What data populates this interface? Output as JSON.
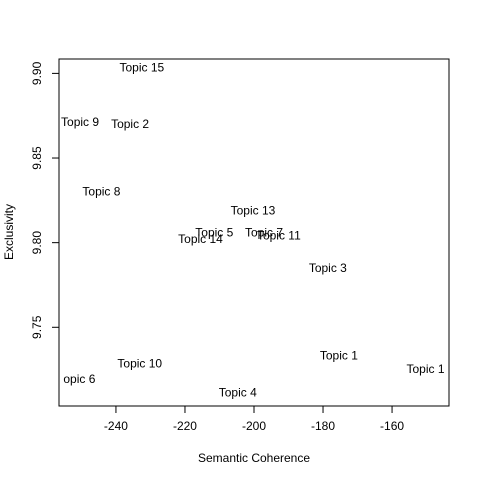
{
  "chart_data": {
    "type": "scatter",
    "title": "",
    "xlabel": "Semantic Coherence",
    "ylabel": "Exclusivity",
    "xlim": [
      -256.5,
      -143.5
    ],
    "ylim": [
      9.7035,
      9.9085
    ],
    "x_ticks": [
      -240,
      -220,
      -200,
      -180,
      -160
    ],
    "y_ticks": [
      9.75,
      9.8,
      9.85,
      9.9
    ],
    "x_tick_labels": [
      "-240",
      "-220",
      "-200",
      "-180",
      "-160"
    ],
    "y_tick_labels": [
      "9.75",
      "9.80",
      "9.85",
      "9.90"
    ],
    "grid": false,
    "legend": "none",
    "points": [
      {
        "label": "Topic 15",
        "x": -232.5,
        "y": 9.9035
      },
      {
        "label": "Topic 9",
        "x": -250.4,
        "y": 9.8713
      },
      {
        "label": "Topic 2",
        "x": -235.9,
        "y": 9.8703
      },
      {
        "label": "Topic 8",
        "x": -244.2,
        "y": 9.8303
      },
      {
        "label": "Topic 13",
        "x": -200.3,
        "y": 9.8192
      },
      {
        "label": "Topic 5",
        "x": -211.5,
        "y": 9.8062
      },
      {
        "label": "Topic 7",
        "x": -197.1,
        "y": 9.8062
      },
      {
        "label": "Topic 14",
        "x": -215.5,
        "y": 9.8022
      },
      {
        "label": "Topic 11",
        "x": -192.8,
        "y": 9.8042
      },
      {
        "label": "Topic 3",
        "x": -178.6,
        "y": 9.7852
      },
      {
        "label": "Topic 1",
        "x": -175.4,
        "y": 9.7336
      },
      {
        "label": "Topic 1",
        "x": -150.3,
        "y": 9.7256
      },
      {
        "label": "Topic 10",
        "x": -233.1,
        "y": 9.7286
      },
      {
        "label": "opic 6",
        "x": -250.6,
        "y": 9.7196
      },
      {
        "label": "Topic 4",
        "x": -204.7,
        "y": 9.7116
      }
    ]
  }
}
